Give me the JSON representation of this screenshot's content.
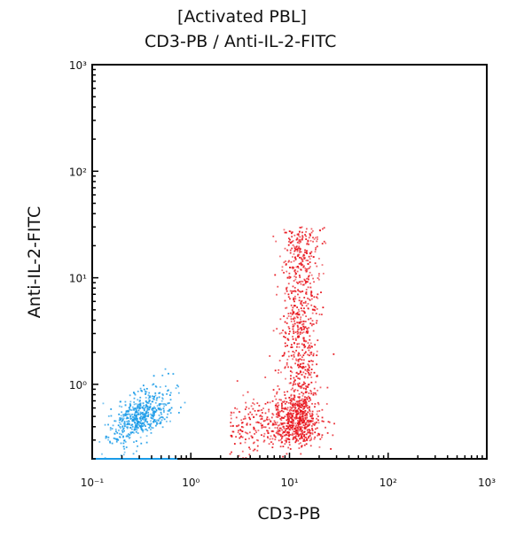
{
  "chart_data": {
    "type": "scatter",
    "title": [
      "[Activated PBL]",
      "CD3-PB / Anti-IL-2-FITC"
    ],
    "xlabel": "CD3-PB",
    "ylabel": "Anti-IL-2-FITC",
    "xscale": "log",
    "yscale": "log",
    "xlim": [
      0.1,
      1000
    ],
    "ylim": [
      0.2,
      1000
    ],
    "xticks": [
      {
        "value": 0.1,
        "label": "10⁻¹"
      },
      {
        "value": 1,
        "label": "10⁰"
      },
      {
        "value": 10,
        "label": "10¹"
      },
      {
        "value": 100,
        "label": "10²"
      },
      {
        "value": 1000,
        "label": "10³"
      }
    ],
    "yticks": [
      {
        "value": 1,
        "label": "10⁰"
      },
      {
        "value": 10,
        "label": "10¹"
      },
      {
        "value": 100,
        "label": "10²"
      },
      {
        "value": 1000,
        "label": "10³"
      }
    ],
    "grid": false,
    "legend": "none",
    "populations": [
      {
        "color": "#1a9be8",
        "count": 550,
        "center_x": 0.3,
        "center_y": 0.5,
        "spread_log_x": 0.16,
        "spread_log_y": 0.14,
        "shape": "diagonal ellipse"
      },
      {
        "color": "#e8141c",
        "count": 900,
        "center_x": 13,
        "y_range": [
          0.3,
          30
        ],
        "spread_log_x": 0.1,
        "shape": "vertical band"
      },
      {
        "color": "#e8141c",
        "count": 350,
        "center_x": 12,
        "center_y": 0.45,
        "spread_log_x": 0.12,
        "spread_log_y": 0.12,
        "shape": "dense base"
      },
      {
        "color": "#e8141c",
        "count": 250,
        "x_range": [
          2.5,
          10
        ],
        "center_y": 0.4,
        "spread_log_y": 0.13,
        "shape": "diffuse left tail"
      }
    ]
  }
}
